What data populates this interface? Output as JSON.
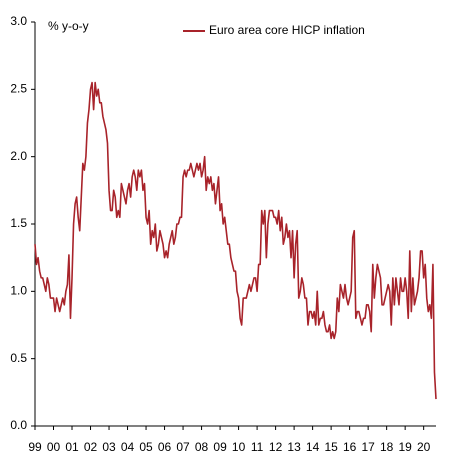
{
  "chart_data": {
    "type": "line",
    "y_label": "% y-o-y",
    "categories": [
      "99",
      null,
      null,
      null,
      null,
      null,
      null,
      null,
      null,
      null,
      null,
      null,
      "00",
      null,
      null,
      null,
      null,
      null,
      null,
      null,
      null,
      null,
      null,
      null,
      "01",
      null,
      null,
      null,
      null,
      null,
      null,
      null,
      null,
      null,
      null,
      null,
      "02",
      null,
      null,
      null,
      null,
      null,
      null,
      null,
      null,
      null,
      null,
      null,
      "03",
      null,
      null,
      null,
      null,
      null,
      null,
      null,
      null,
      null,
      null,
      null,
      "04",
      null,
      null,
      null,
      null,
      null,
      null,
      null,
      null,
      null,
      null,
      null,
      "05",
      null,
      null,
      null,
      null,
      null,
      null,
      null,
      null,
      null,
      null,
      null,
      "06",
      null,
      null,
      null,
      null,
      null,
      null,
      null,
      null,
      null,
      null,
      null,
      "07",
      null,
      null,
      null,
      null,
      null,
      null,
      null,
      null,
      null,
      null,
      null,
      "08",
      null,
      null,
      null,
      null,
      null,
      null,
      null,
      null,
      null,
      null,
      null,
      "09",
      null,
      null,
      null,
      null,
      null,
      null,
      null,
      null,
      null,
      null,
      null,
      "10",
      null,
      null,
      null,
      null,
      null,
      null,
      null,
      null,
      null,
      null,
      null,
      "11",
      null,
      null,
      null,
      null,
      null,
      null,
      null,
      null,
      null,
      null,
      null,
      "12",
      null,
      null,
      null,
      null,
      null,
      null,
      null,
      null,
      null,
      null,
      null,
      "13",
      null,
      null,
      null,
      null,
      null,
      null,
      null,
      null,
      null,
      null,
      null,
      "14",
      null,
      null,
      null,
      null,
      null,
      null,
      null,
      null,
      null,
      null,
      null,
      "15",
      null,
      null,
      null,
      null,
      null,
      null,
      null,
      null,
      null,
      null,
      null,
      "16",
      null,
      null,
      null,
      null,
      null,
      null,
      null,
      null,
      null,
      null,
      null,
      "17",
      null,
      null,
      null,
      null,
      null,
      null,
      null,
      null,
      null,
      null,
      null,
      "18",
      null,
      null,
      null,
      null,
      null,
      null,
      null,
      null,
      null,
      null,
      null,
      "19",
      null,
      null,
      null,
      null,
      null,
      null,
      null,
      null,
      null,
      null,
      null,
      "20",
      null,
      null,
      null,
      null,
      null,
      null,
      null,
      null
    ],
    "series": [
      {
        "name": "Euro area core HICP inflation",
        "color": "#a8232a",
        "values": [
          1.35,
          1.2,
          1.25,
          1.15,
          1.1,
          1.1,
          1.05,
          1.0,
          1.1,
          1.05,
          0.95,
          0.95,
          0.95,
          0.85,
          0.95,
          0.9,
          0.85,
          0.9,
          0.95,
          0.9,
          1.0,
          1.05,
          1.27,
          0.8,
          1.1,
          1.5,
          1.65,
          1.7,
          1.55,
          1.45,
          1.7,
          1.95,
          1.9,
          2.0,
          2.25,
          2.35,
          2.5,
          2.55,
          2.35,
          2.55,
          2.45,
          2.5,
          2.4,
          2.4,
          2.3,
          2.25,
          2.2,
          2.1,
          1.75,
          1.6,
          1.6,
          1.75,
          1.7,
          1.55,
          1.6,
          1.55,
          1.8,
          1.75,
          1.7,
          1.65,
          1.75,
          1.8,
          1.7,
          1.85,
          1.9,
          1.85,
          1.75,
          1.9,
          1.85,
          1.9,
          1.75,
          1.8,
          1.55,
          1.5,
          1.6,
          1.35,
          1.45,
          1.4,
          1.5,
          1.3,
          1.35,
          1.45,
          1.4,
          1.35,
          1.25,
          1.3,
          1.25,
          1.35,
          1.4,
          1.45,
          1.35,
          1.4,
          1.5,
          1.5,
          1.55,
          1.55,
          1.85,
          1.9,
          1.85,
          1.9,
          1.9,
          1.95,
          1.9,
          1.85,
          1.9,
          1.95,
          1.9,
          1.95,
          1.85,
          1.9,
          2.0,
          1.75,
          1.85,
          1.8,
          1.85,
          1.75,
          1.8,
          1.65,
          1.75,
          1.85,
          1.6,
          1.65,
          1.5,
          1.55,
          1.45,
          1.35,
          1.35,
          1.25,
          1.2,
          1.15,
          1.15,
          1.0,
          0.95,
          0.8,
          0.75,
          0.95,
          0.95,
          0.95,
          1.0,
          1.05,
          1.0,
          1.05,
          1.1,
          1.1,
          1.0,
          1.2,
          1.2,
          1.6,
          1.5,
          1.6,
          1.25,
          1.5,
          1.6,
          1.6,
          1.6,
          1.55,
          1.55,
          1.5,
          1.6,
          1.45,
          1.55,
          1.35,
          1.4,
          1.5,
          1.4,
          1.45,
          1.25,
          1.45,
          1.1,
          1.35,
          1.45,
          0.95,
          1.0,
          1.1,
          1.05,
          0.95,
          0.95,
          0.75,
          0.85,
          0.85,
          0.8,
          0.85,
          0.75,
          1.0,
          0.75,
          0.8,
          0.8,
          0.85,
          0.75,
          0.7,
          0.7,
          0.75,
          0.65,
          0.7,
          0.65,
          0.7,
          0.95,
          0.85,
          1.05,
          1.0,
          0.95,
          1.05,
          0.95,
          0.9,
          0.95,
          1.0,
          1.4,
          1.45,
          0.8,
          0.85,
          0.85,
          0.8,
          0.75,
          0.8,
          0.8,
          0.9,
          0.9,
          0.85,
          0.7,
          1.2,
          0.95,
          1.1,
          1.2,
          1.15,
          1.1,
          0.9,
          0.9,
          0.95,
          1.0,
          1.05,
          1.0,
          0.75,
          1.1,
          0.9,
          1.1,
          1.0,
          0.9,
          1.1,
          1.0,
          1.0,
          1.1,
          1.0,
          0.8,
          1.3,
          0.85,
          1.1,
          0.9,
          0.95,
          1.0,
          1.1,
          1.3,
          1.3,
          1.1,
          1.2,
          0.95,
          0.85,
          0.9,
          0.8,
          1.2,
          0.4,
          0.2
        ]
      }
    ],
    "ylim": [
      0,
      3
    ],
    "yticks": [
      {
        "value": 0,
        "label": "0.0"
      },
      0.5,
      {
        "value": 1,
        "label": "1.0"
      },
      1.5,
      {
        "value": 2,
        "label": "2.0"
      },
      2.5,
      {
        "value": 3,
        "label": "3.0"
      }
    ],
    "grid": false,
    "legend": "top-right"
  }
}
